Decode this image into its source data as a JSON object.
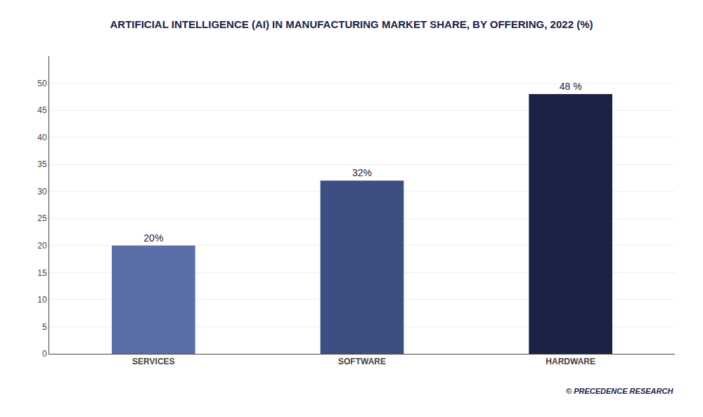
{
  "chart_data": {
    "type": "bar",
    "title": "ARTIFICIAL INTELLIGENCE (AI) IN MANUFACTURING MARKET SHARE, BY OFFERING, 2022 (%)",
    "categories": [
      "SERVICES",
      "SOFTWARE",
      "HARDWARE"
    ],
    "values": [
      20,
      32,
      48
    ],
    "value_labels": [
      "20%",
      "32%",
      "48 %"
    ],
    "colors": [
      "#5a6fa8",
      "#3d4f80",
      "#1a2345"
    ],
    "ylim": [
      0,
      55
    ],
    "yticks": [
      0,
      5,
      10,
      15,
      20,
      25,
      30,
      35,
      40,
      45,
      50
    ],
    "grid": true,
    "data_labels": true,
    "annotations": [
      "© PRECEDENCE RESEARCH"
    ]
  }
}
